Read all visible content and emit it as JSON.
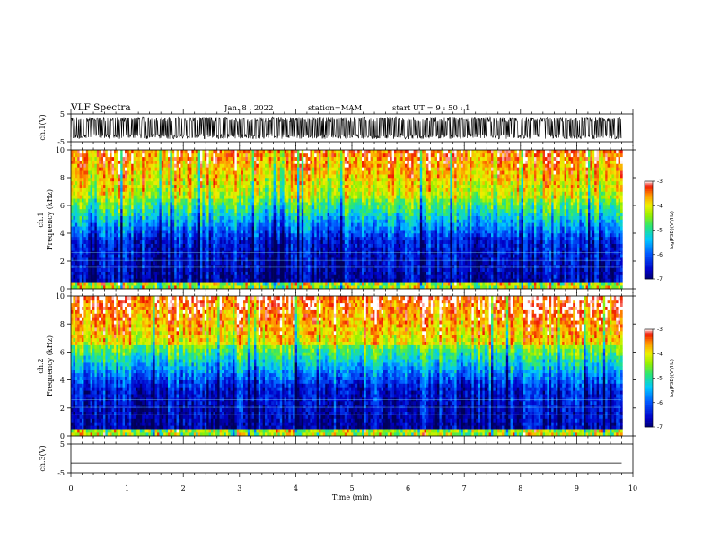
{
  "header": {
    "title": "VLF Spectra",
    "date": "Jan. 8 , 2022",
    "station": "station=MAM",
    "start": "start UT = 9 : 50 : 1"
  },
  "chart_data": [
    {
      "type": "line",
      "panel": "ch1-waveform",
      "ylabel": "ch.1(V)",
      "ylim": [
        -5,
        5
      ],
      "yticks": [
        "5",
        "-5"
      ],
      "xlim": [
        0,
        10
      ],
      "description_series": "dense oscillating waveform filling roughly -4 to 4 V"
    },
    {
      "type": "heatmap",
      "panel": "ch1-spectrogram",
      "ylabel_top": "ch.1",
      "ylabel": "Frequency (kHz)",
      "ylim": [
        0,
        10
      ],
      "yticks": [
        "0",
        "2",
        "4",
        "6",
        "8",
        "10"
      ],
      "xlim": [
        0,
        10
      ],
      "colorbar": {
        "label": "log(PSD)(V²/Hz)",
        "range": [
          -7,
          -3
        ],
        "ticks": [
          "-3",
          "-4",
          "-5",
          "-6",
          "-7"
        ]
      }
    },
    {
      "type": "heatmap",
      "panel": "ch2-spectrogram",
      "ylabel_top": "ch.2",
      "ylabel": "Frequency (kHz)",
      "ylim": [
        0,
        10
      ],
      "yticks": [
        "0",
        "2",
        "4",
        "6",
        "8",
        "10"
      ],
      "xlim": [
        0,
        10
      ],
      "colorbar": {
        "label": "log(PSD)(V²/Hz)",
        "range": [
          -7,
          -3
        ],
        "ticks": [
          "-3",
          "-4",
          "-5",
          "-6",
          "-7"
        ]
      }
    },
    {
      "type": "line",
      "panel": "ch3-waveform",
      "ylabel": "ch.3(V)",
      "ylim": [
        -5,
        5
      ],
      "yticks": [
        "5",
        "-5"
      ],
      "series": [
        {
          "x": [
            0,
            9.8
          ],
          "y": [
            -1.6,
            -1.6
          ]
        }
      ]
    }
  ],
  "xaxis": {
    "label": "Time (min)",
    "ticks": [
      "0",
      "1",
      "2",
      "3",
      "4",
      "5",
      "6",
      "7",
      "8",
      "9",
      "10"
    ],
    "range": [
      0,
      10
    ]
  }
}
